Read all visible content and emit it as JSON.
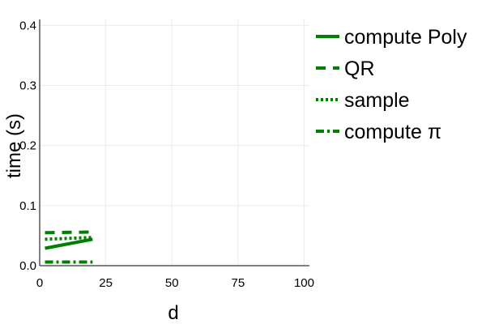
{
  "chart_data": {
    "type": "line",
    "xlabel": "d",
    "ylabel": "time (s)",
    "xlim": [
      0,
      102
    ],
    "ylim": [
      0,
      0.41
    ],
    "xticks": [
      0,
      25,
      50,
      75,
      100
    ],
    "yticks": [
      0.0,
      0.1,
      0.2,
      0.3,
      0.4
    ],
    "xtick_labels": [
      "0",
      "25",
      "50",
      "75",
      "100"
    ],
    "ytick_labels": [
      "0.0",
      "0.1",
      "0.2",
      "0.3",
      "0.4"
    ],
    "grid": true,
    "legend_position": "right",
    "series": [
      {
        "name": "compute Poly",
        "x": [
          2,
          20
        ],
        "y": [
          0.029,
          0.044
        ],
        "color": "#008000",
        "dash": "solid"
      },
      {
        "name": "QR",
        "x": [
          2,
          20
        ],
        "y": [
          0.055,
          0.056
        ],
        "color": "#008000",
        "dash": "dash"
      },
      {
        "name": "sample",
        "x": [
          2,
          20
        ],
        "y": [
          0.044,
          0.047
        ],
        "color": "#008000",
        "dash": "dot"
      },
      {
        "name": "compute π",
        "x": [
          2,
          20
        ],
        "y": [
          0.006,
          0.006
        ],
        "color": "#008000",
        "dash": "dashdot"
      }
    ]
  }
}
